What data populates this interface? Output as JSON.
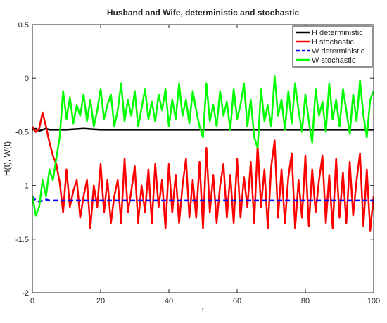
{
  "chart_data": {
    "type": "line",
    "title": "Husband and Wife, deterministic and stochastic",
    "xlabel": "t",
    "ylabel": "H(t), W(t)",
    "xlim": [
      0,
      100
    ],
    "ylim": [
      -2,
      0.5
    ],
    "xticks": [
      0,
      20,
      40,
      60,
      80,
      100
    ],
    "yticks": [
      0.5,
      0,
      -0.5,
      -1,
      -1.5,
      -2
    ],
    "xtick_labels": [
      "0",
      "20",
      "40",
      "60",
      "80",
      "100"
    ],
    "ytick_labels": [
      "0.5",
      "0",
      "-0.5",
      "-1",
      "-1.5",
      "-2"
    ],
    "grid": false,
    "legend_position": "top-right",
    "series": [
      {
        "name": "H deterministic",
        "color": "#000000",
        "style": "solid",
        "width": 2.5,
        "x": [
          0,
          1,
          2,
          3,
          4,
          5,
          6,
          8,
          10,
          15,
          20,
          30,
          40,
          50,
          60,
          70,
          80,
          90,
          100
        ],
        "y": [
          -0.48,
          -0.47,
          -0.49,
          -0.48,
          -0.47,
          -0.48,
          -0.48,
          -0.48,
          -0.48,
          -0.47,
          -0.48,
          -0.48,
          -0.48,
          -0.48,
          -0.48,
          -0.48,
          -0.48,
          -0.48,
          -0.48
        ]
      },
      {
        "name": "H stochastic",
        "color": "#ff0000",
        "style": "solid",
        "width": 2.5,
        "x": [
          0,
          1,
          2,
          3,
          4,
          5,
          6,
          7,
          8,
          9,
          10,
          11,
          12,
          13,
          14,
          15,
          16,
          17,
          18,
          19,
          20,
          21,
          22,
          23,
          24,
          25,
          26,
          27,
          28,
          29,
          30,
          31,
          32,
          33,
          34,
          35,
          36,
          37,
          38,
          39,
          40,
          41,
          42,
          43,
          44,
          45,
          46,
          47,
          48,
          49,
          50,
          51,
          52,
          53,
          54,
          55,
          56,
          57,
          58,
          59,
          60,
          61,
          62,
          63,
          64,
          65,
          66,
          67,
          68,
          69,
          70,
          71,
          72,
          73,
          74,
          75,
          76,
          77,
          78,
          79,
          80,
          81,
          82,
          83,
          84,
          85,
          86,
          87,
          88,
          89,
          90,
          91,
          92,
          93,
          94,
          95,
          96,
          97,
          98,
          99,
          100
        ],
        "y": [
          -0.45,
          -0.5,
          -0.47,
          -0.32,
          -0.45,
          -0.6,
          -0.72,
          -0.8,
          -0.97,
          -1.25,
          -0.85,
          -1.2,
          -1.05,
          -0.95,
          -1.3,
          -1.1,
          -0.95,
          -1.4,
          -1.0,
          -1.2,
          -0.8,
          -1.25,
          -0.95,
          -1.35,
          -1.1,
          -0.95,
          -1.35,
          -0.75,
          -1.25,
          -1.05,
          -0.82,
          -1.35,
          -1.0,
          -1.25,
          -0.85,
          -1.35,
          -0.8,
          -1.2,
          -0.95,
          -1.4,
          -0.8,
          -1.25,
          -0.9,
          -1.35,
          -1.0,
          -0.75,
          -1.3,
          -0.95,
          -1.3,
          -0.78,
          -1.4,
          -0.65,
          -1.25,
          -0.9,
          -1.35,
          -1.0,
          -0.8,
          -1.3,
          -0.9,
          -1.35,
          -0.75,
          -1.3,
          -0.92,
          -1.2,
          -0.78,
          -1.35,
          -0.62,
          -1.2,
          -0.85,
          -1.4,
          -0.82,
          -0.58,
          -1.3,
          -0.85,
          -1.35,
          -0.92,
          -0.7,
          -1.4,
          -0.95,
          -1.3,
          -0.72,
          -1.38,
          -0.85,
          -1.25,
          -0.95,
          -0.72,
          -1.35,
          -0.9,
          -1.4,
          -0.75,
          -1.3,
          -0.88,
          -1.35,
          -0.78,
          -1.28,
          -0.95,
          -0.7,
          -1.38,
          -0.85,
          -1.42,
          -1.1
        ]
      },
      {
        "name": "W deterministic",
        "color": "#0000ff",
        "style": "dashed",
        "width": 2.5,
        "x": [
          0,
          1,
          2,
          3,
          4,
          5,
          10,
          20,
          30,
          40,
          50,
          60,
          70,
          80,
          90,
          100
        ],
        "y": [
          -1.1,
          -1.14,
          -1.15,
          -1.14,
          -1.13,
          -1.14,
          -1.14,
          -1.14,
          -1.14,
          -1.14,
          -1.14,
          -1.14,
          -1.14,
          -1.14,
          -1.14,
          -1.14
        ]
      },
      {
        "name": "W stochastic",
        "color": "#00ff00",
        "style": "solid",
        "width": 2.5,
        "x": [
          0,
          1,
          2,
          3,
          4,
          5,
          6,
          7,
          8,
          9,
          10,
          11,
          12,
          13,
          14,
          15,
          16,
          17,
          18,
          19,
          20,
          21,
          22,
          23,
          24,
          25,
          26,
          27,
          28,
          29,
          30,
          31,
          32,
          33,
          34,
          35,
          36,
          37,
          38,
          39,
          40,
          41,
          42,
          43,
          44,
          45,
          46,
          47,
          48,
          49,
          50,
          51,
          52,
          53,
          54,
          55,
          56,
          57,
          58,
          59,
          60,
          61,
          62,
          63,
          64,
          65,
          66,
          67,
          68,
          69,
          70,
          71,
          72,
          73,
          74,
          75,
          76,
          77,
          78,
          79,
          80,
          81,
          82,
          83,
          84,
          85,
          86,
          87,
          88,
          89,
          90,
          91,
          92,
          93,
          94,
          95,
          96,
          97,
          98,
          99,
          100
        ],
        "y": [
          -1.1,
          -1.28,
          -1.2,
          -0.95,
          -1.1,
          -0.85,
          -0.95,
          -0.75,
          -0.55,
          -0.12,
          -0.38,
          -0.18,
          -0.42,
          -0.25,
          -0.35,
          -0.15,
          -0.4,
          -0.2,
          -0.45,
          -0.3,
          -0.1,
          -0.38,
          -0.25,
          -0.15,
          -0.45,
          -0.3,
          -0.05,
          -0.4,
          -0.2,
          -0.35,
          -0.12,
          -0.45,
          -0.28,
          -0.1,
          -0.38,
          -0.22,
          -0.4,
          -0.15,
          -0.3,
          -0.1,
          -0.45,
          -0.2,
          -0.38,
          -0.05,
          -0.35,
          -0.2,
          -0.42,
          -0.12,
          -0.3,
          -0.45,
          -0.55,
          -0.05,
          -0.4,
          -0.25,
          -0.45,
          -0.12,
          -0.35,
          -0.22,
          -0.48,
          -0.1,
          -0.38,
          -0.25,
          -0.05,
          -0.45,
          -0.2,
          -0.55,
          -0.65,
          -0.1,
          -0.4,
          -0.25,
          -0.45,
          0.02,
          -0.35,
          -0.2,
          -0.48,
          -0.12,
          -0.42,
          -0.05,
          -0.3,
          -0.5,
          -0.15,
          -0.4,
          -0.6,
          -0.1,
          -0.35,
          -0.22,
          -0.5,
          -0.05,
          -0.38,
          -0.2,
          -0.45,
          -0.1,
          -0.3,
          -0.52,
          -0.15,
          -0.4,
          -0.02,
          -0.35,
          -0.55,
          -0.2,
          -0.12
        ]
      }
    ]
  }
}
